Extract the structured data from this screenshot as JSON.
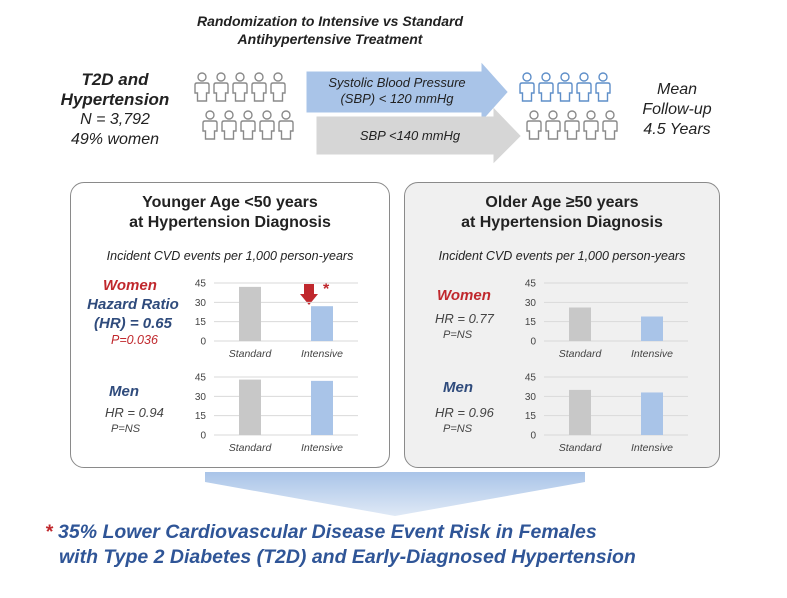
{
  "header": {
    "title_line1": "Randomization to Intensive vs Standard",
    "title_line2": "Antihypertensive Treatment"
  },
  "cohort": {
    "label_line1": "T2D and",
    "label_line2": "Hypertension",
    "n": "N = 3,792",
    "women": "49% women"
  },
  "arms": {
    "intensive_line1": "Systolic Blood Pressure",
    "intensive_line2": "(SBP) < 120 mmHg",
    "standard": "SBP <140 mmHg"
  },
  "followup": {
    "line1": "Mean",
    "line2": "Follow-up",
    "line3": "4.5 Years"
  },
  "colors": {
    "standard_bar": "#c8c8c8",
    "intensive_bar": "#a9c4e8",
    "women_red": "#c0282d",
    "men_blue": "#2f4b7c",
    "accent_blue": "#2f5597"
  },
  "panels": {
    "younger": {
      "title_line1": "Younger Age <50 years",
      "title_line2": "at Hypertension Diagnosis",
      "subtitle": "Incident CVD events per 1,000 person-years",
      "women_label": "Women",
      "women_hr_line1": "Hazard Ratio",
      "women_hr_line2": "(HR) = 0.65",
      "women_p": "P=0.036",
      "men_label": "Men",
      "men_hr": "HR = 0.94",
      "men_p": "P=NS",
      "star": "*"
    },
    "older": {
      "title_line1": "Older Age ≥50 years",
      "title_line2": "at Hypertension Diagnosis",
      "subtitle": "Incident CVD events per 1,000 person-years",
      "women_label": "Women",
      "women_hr": "HR = 0.77",
      "women_p": "P=NS",
      "men_label": "Men",
      "men_hr": "HR = 0.96",
      "men_p": "P=NS"
    }
  },
  "chart_data": [
    {
      "id": "younger-women",
      "type": "bar",
      "categories": [
        "Standard",
        "Intensive"
      ],
      "values": [
        42,
        27
      ],
      "ylim": [
        0,
        45
      ],
      "yticks": [
        0,
        15,
        30,
        45
      ],
      "title": "",
      "xlabel": "",
      "ylabel": ""
    },
    {
      "id": "younger-men",
      "type": "bar",
      "categories": [
        "Standard",
        "Intensive"
      ],
      "values": [
        43,
        42
      ],
      "ylim": [
        0,
        45
      ],
      "yticks": [
        0,
        15,
        30,
        45
      ],
      "title": "",
      "xlabel": "",
      "ylabel": ""
    },
    {
      "id": "older-women",
      "type": "bar",
      "categories": [
        "Standard",
        "Intensive"
      ],
      "values": [
        26,
        19
      ],
      "ylim": [
        0,
        45
      ],
      "yticks": [
        0,
        15,
        30,
        45
      ],
      "title": "",
      "xlabel": "",
      "ylabel": ""
    },
    {
      "id": "older-men",
      "type": "bar",
      "categories": [
        "Standard",
        "Intensive"
      ],
      "values": [
        35,
        33
      ],
      "ylim": [
        0,
        45
      ],
      "yticks": [
        0,
        15,
        30,
        45
      ],
      "title": "",
      "xlabel": "",
      "ylabel": ""
    }
  ],
  "conclusion": {
    "star": "*",
    "line1": "35% Lower Cardiovascular Disease Event Risk in Females",
    "line2": "with Type 2 Diabetes (T2D) and Early-Diagnosed Hypertension"
  }
}
